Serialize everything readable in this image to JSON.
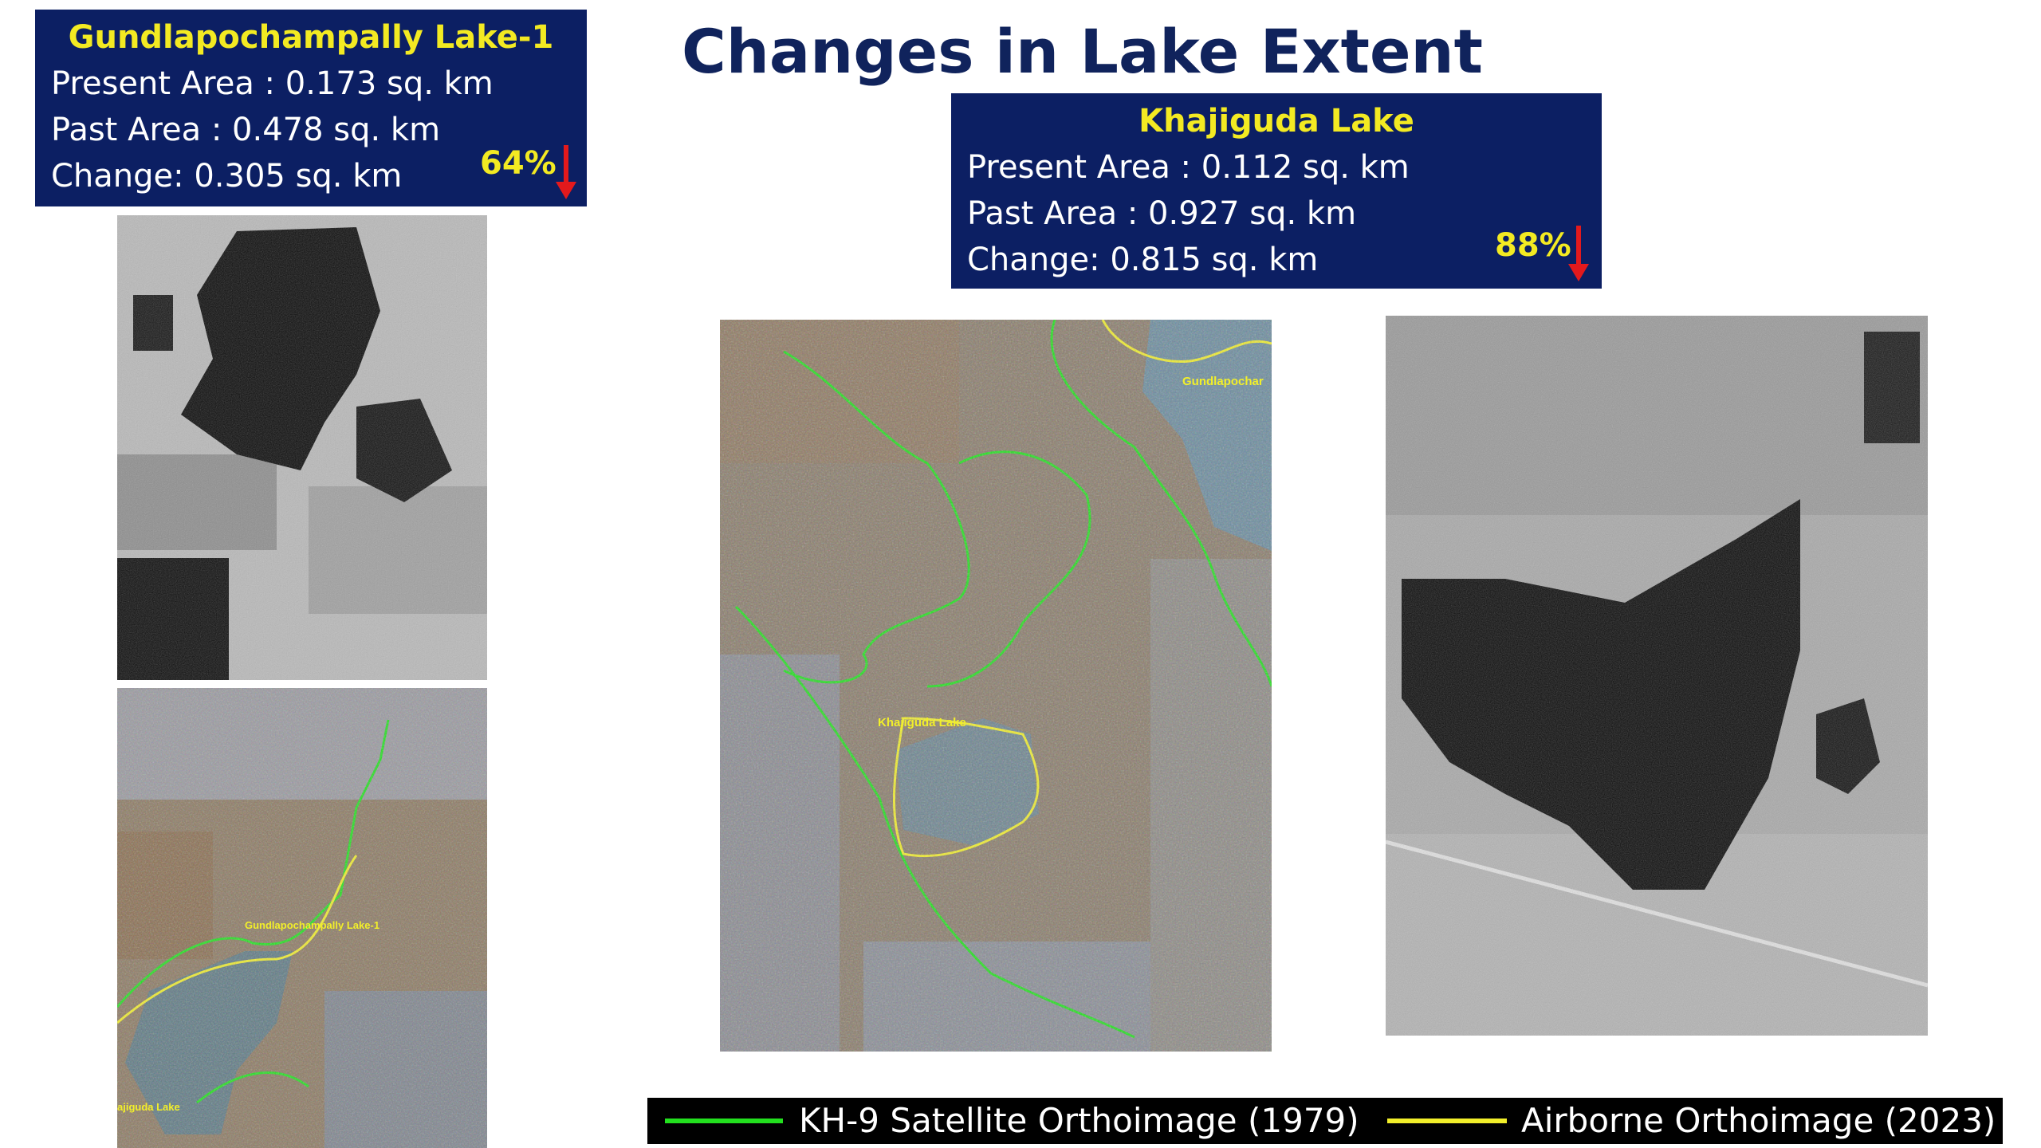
{
  "title": "Changes in Lake Extent",
  "box1": {
    "name": "Gundlapochampally Lake-1",
    "present": "Present Area : 0.173 sq. km",
    "past": "Past Area : 0.478 sq. km",
    "change": "Change: 0.305 sq. km",
    "percent": "64%"
  },
  "box2": {
    "name": "Khajiguda Lake",
    "present": "Present Area : 0.112 sq. km",
    "past": "Past Area : 0.927 sq. km",
    "change": "Change: 0.815 sq. km",
    "percent": "88%"
  },
  "map_labels": {
    "gundla_small": "Gundlapochampally Lake-1",
    "khajiguda_small": "ajiguda Lake",
    "khajiguda_center": "Khajiguda Lake",
    "gundla_top": "Gundlapochar"
  },
  "legend": {
    "green_label": "KH-9 Satellite Orthoimage (1979)",
    "yellow_label": "Airborne Orthoimage (2023)",
    "green_color": "#22e01e",
    "yellow_color": "#f2ef2a"
  },
  "colors": {
    "box_bg": "#0c1f63",
    "box_heading": "#f3ea22",
    "title": "#10235c",
    "arrow": "#e3191c"
  }
}
